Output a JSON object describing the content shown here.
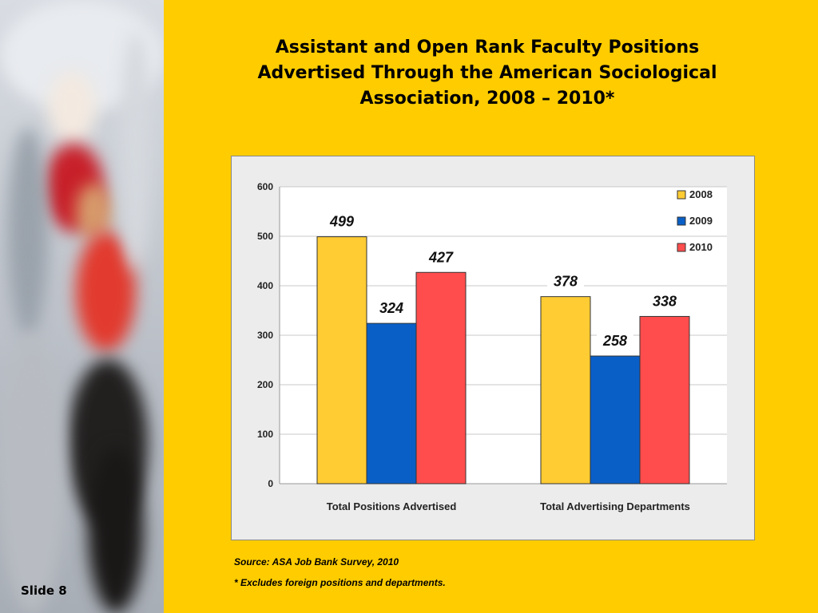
{
  "slide": {
    "title": "Assistant and Open Rank Faculty Positions\nAdvertised Through the American Sociological\nAssociation, 2008 – 2010*",
    "source_note": "Source: ASA Job Bank Survey, 2010",
    "footnote": "* Excludes foreign positions and departments.",
    "slide_label": "Slide 8"
  },
  "colors": {
    "background": "#ffcc00",
    "s2008": "#ffcc33",
    "s2009": "#0a5fc7",
    "s2010": "#ff4d4d"
  },
  "chart_data": {
    "type": "bar",
    "categories": [
      "Total Positions Advertised",
      "Total Advertising Departments"
    ],
    "series": [
      {
        "name": "2008",
        "values": [
          499,
          378
        ],
        "color": "#ffcc33"
      },
      {
        "name": "2009",
        "values": [
          324,
          258
        ],
        "color": "#0a5fc7"
      },
      {
        "name": "2010",
        "values": [
          427,
          338
        ],
        "color": "#ff4d4d"
      }
    ],
    "yticks": [
      0,
      100,
      200,
      300,
      400,
      500,
      600
    ],
    "ylim": [
      0,
      600
    ],
    "grid": true,
    "legend": "top-right",
    "data_labels": true
  }
}
